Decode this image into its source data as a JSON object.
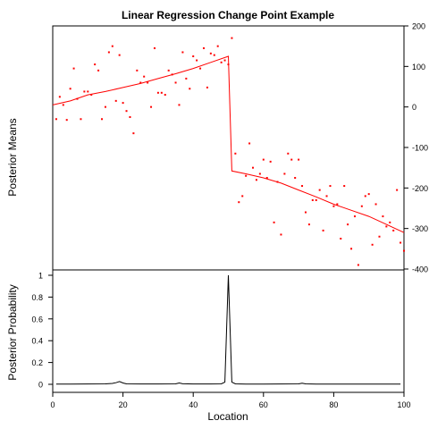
{
  "chart_data": [
    {
      "type": "scatter",
      "panel": "top",
      "title": "Linear Regression Change Point Example",
      "ylabel": "Posterior Means",
      "y_axis_side": "right",
      "xlim": [
        0,
        100
      ],
      "ylim": [
        -400,
        200
      ],
      "y_ticks": [
        200,
        100,
        0,
        -100,
        -200,
        -300,
        -400
      ],
      "point_color": "#ff0000",
      "line_color": "#ff0000",
      "observations": {
        "x": [
          1,
          2,
          3,
          4,
          5,
          6,
          7,
          8,
          9,
          10,
          11,
          12,
          13,
          14,
          15,
          16,
          17,
          18,
          19,
          20,
          21,
          22,
          23,
          24,
          25,
          26,
          27,
          28,
          29,
          30,
          31,
          32,
          33,
          34,
          35,
          36,
          37,
          38,
          39,
          40,
          41,
          42,
          43,
          44,
          45,
          46,
          47,
          48,
          49,
          50,
          51,
          52,
          53,
          54,
          55,
          56,
          57,
          58,
          59,
          60,
          61,
          62,
          63,
          64,
          65,
          66,
          67,
          68,
          69,
          70,
          71,
          72,
          73,
          74,
          75,
          76,
          77,
          78,
          79,
          80,
          81,
          82,
          83,
          84,
          85,
          86,
          87,
          88,
          89,
          90,
          91,
          92,
          93,
          94,
          95,
          96,
          97,
          98,
          99,
          100
        ],
        "y": [
          -30,
          25,
          5,
          -32,
          45,
          95,
          20,
          -30,
          38,
          38,
          30,
          105,
          90,
          -30,
          0,
          135,
          150,
          15,
          128,
          10,
          -10,
          -25,
          -65,
          90,
          60,
          75,
          60,
          0,
          145,
          35,
          35,
          30,
          90,
          80,
          60,
          5,
          135,
          70,
          45,
          125,
          115,
          95,
          145,
          48,
          132,
          128,
          150,
          110,
          115,
          105,
          170,
          -115,
          -235,
          -220,
          -170,
          -90,
          -150,
          -180,
          -165,
          -130,
          -175,
          -135,
          -285,
          -185,
          -315,
          -165,
          -115,
          -130,
          -175,
          -130,
          -195,
          -260,
          -290,
          -230,
          -230,
          -205,
          -305,
          -220,
          -195,
          -245,
          -240,
          -325,
          -195,
          -290,
          -350,
          -270,
          -390,
          -245,
          -220,
          -215,
          -340,
          -240,
          -320,
          -270,
          -295,
          -285,
          -305,
          -205,
          -335,
          -355
        ]
      },
      "posterior_mean": {
        "x": [
          0,
          5,
          10,
          15,
          20,
          25,
          30,
          35,
          40,
          45,
          50,
          51,
          55,
          60,
          65,
          70,
          75,
          80,
          85,
          90,
          95,
          100
        ],
        "y": [
          5,
          15,
          30,
          38,
          48,
          58,
          70,
          82,
          95,
          110,
          125,
          -158,
          -165,
          -175,
          -188,
          -205,
          -222,
          -240,
          -255,
          -270,
          -290,
          -310
        ]
      }
    },
    {
      "type": "line",
      "panel": "bottom",
      "ylabel": "Posterior Probability",
      "xlabel": "Location",
      "xlim": [
        0,
        100
      ],
      "ylim": [
        0,
        1
      ],
      "x_ticks": [
        0,
        20,
        40,
        60,
        80,
        100
      ],
      "y_ticks": [
        "0",
        "0.2",
        "0.4",
        "0.6",
        "0.8",
        "1"
      ],
      "line_color": "#000000",
      "x": [
        1,
        5,
        10,
        15,
        17,
        18,
        19,
        20,
        21,
        25,
        30,
        35,
        36,
        37,
        40,
        45,
        48,
        49,
        50,
        51,
        52,
        55,
        60,
        65,
        70,
        71,
        72,
        75,
        80,
        85,
        90,
        95,
        99
      ],
      "y": [
        0.002,
        0.002,
        0.003,
        0.004,
        0.008,
        0.015,
        0.025,
        0.012,
        0.004,
        0.003,
        0.003,
        0.004,
        0.012,
        0.005,
        0.003,
        0.003,
        0.004,
        0.02,
        1.0,
        0.02,
        0.004,
        0.002,
        0.002,
        0.003,
        0.004,
        0.01,
        0.004,
        0.002,
        0.002,
        0.002,
        0.002,
        0.002,
        0.002
      ]
    }
  ]
}
